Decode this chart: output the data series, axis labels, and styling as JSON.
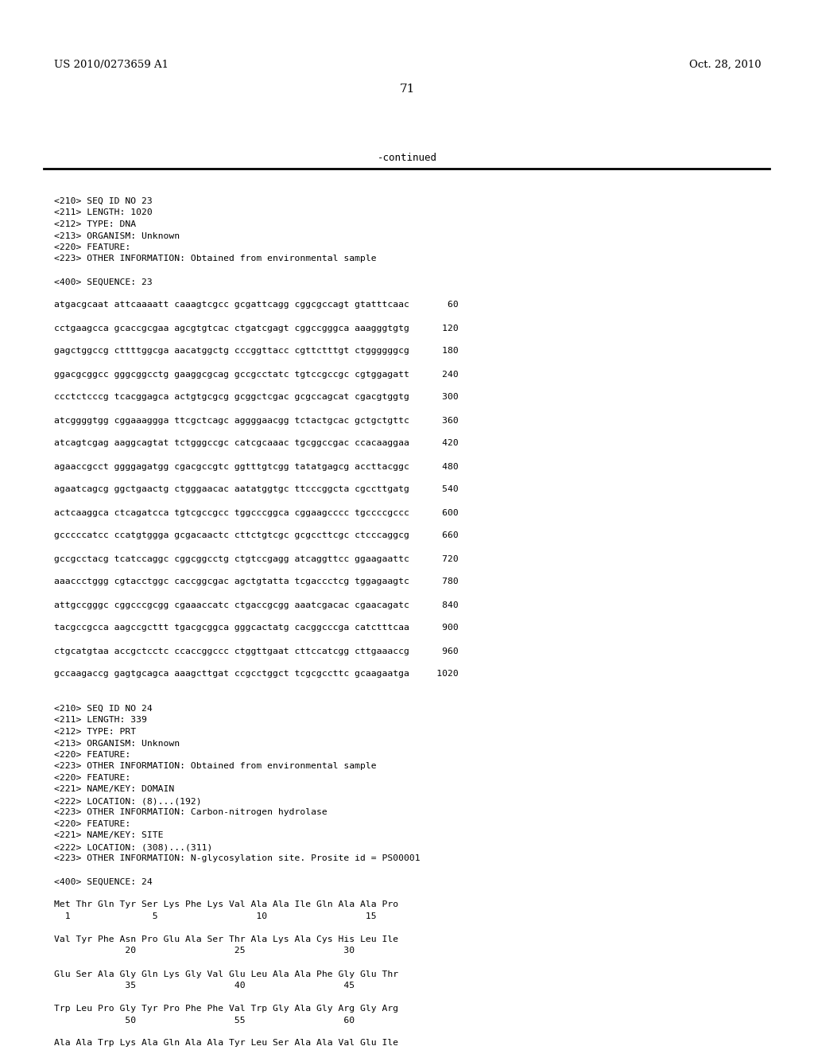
{
  "header_left": "US 2010/0273659 A1",
  "header_right": "Oct. 28, 2010",
  "page_number": "71",
  "continued_text": "-continued",
  "background_color": "#ffffff",
  "text_color": "#000000",
  "content": [
    "<210> SEQ ID NO 23",
    "<211> LENGTH: 1020",
    "<212> TYPE: DNA",
    "<213> ORGANISM: Unknown",
    "<220> FEATURE:",
    "<223> OTHER INFORMATION: Obtained from environmental sample",
    "",
    "<400> SEQUENCE: 23",
    "",
    "atgacgcaat attcaaaatt caaagtcgcc gcgattcagg cggcgccagt gtatttcaac       60",
    "",
    "cctgaagcca gcaccgcgaa agcgtgtcac ctgatcgagt cggccgggca aaagggtgtg      120",
    "",
    "gagctggccg cttttggcga aacatggctg cccggttacc cgttctttgt ctggggggcg      180",
    "",
    "ggacgcggcc gggcggcctg gaaggcgcag gccgcctatc tgtccgccgc cgtggagatt      240",
    "",
    "ccctctcccg tcacggagca actgtgcgcg gcggctcgac gcgccagcat cgacgtggtg      300",
    "",
    "atcggggtgg cggaaaggga ttcgctcagc aggggaacgg tctactgcac gctgctgttc      360",
    "",
    "atcagtcgag aaggcagtat tctgggccgc catcgcaaac tgcggccgac ccacaaggaa      420",
    "",
    "agaaccgcct ggggagatgg cgacgccgtc ggtttgtcgg tatatgagcg accttacggc      480",
    "",
    "agaatcagcg ggctgaactg ctgggaacac aatatggtgc ttcccggcta cgccttgatg      540",
    "",
    "actcaaggca ctcagatcca tgtcgccgcc tggcccggca cggaagcccc tgccccgccc      600",
    "",
    "gcccccatcc ccatgtggga gcgacaactc cttctgtcgc gcgccttcgc ctcccaggcg      660",
    "",
    "gccgcctacg tcatccaggc cggcggcctg ctgtccgagg atcaggttcc ggaagaattc      720",
    "",
    "aaaccctggg cgtacctggc caccggcgac agctgtatta tcgaccctcg tggagaagtc      780",
    "",
    "attgccgggc cggcccgcgg cgaaaccatc ctgaccgcgg aaatcgacac cgaacagatc      840",
    "",
    "tacgccgcca aagccgcttt tgacgcggca gggcactatg cacggcccga catctttcaa      900",
    "",
    "ctgcatgtaa accgctcctc ccaccggccc ctggttgaat cttccatcgg cttgaaaccg      960",
    "",
    "gccaagaccg gagtgcagca aaagcttgat ccgcctggct tcgcgccttc gcaagaatga     1020",
    "",
    "",
    "<210> SEQ ID NO 24",
    "<211> LENGTH: 339",
    "<212> TYPE: PRT",
    "<213> ORGANISM: Unknown",
    "<220> FEATURE:",
    "<223> OTHER INFORMATION: Obtained from environmental sample",
    "<220> FEATURE:",
    "<221> NAME/KEY: DOMAIN",
    "<222> LOCATION: (8)...(192)",
    "<223> OTHER INFORMATION: Carbon-nitrogen hydrolase",
    "<220> FEATURE:",
    "<221> NAME/KEY: SITE",
    "<222> LOCATION: (308)...(311)",
    "<223> OTHER INFORMATION: N-glycosylation site. Prosite id = PS00001",
    "",
    "<400> SEQUENCE: 24",
    "",
    "Met Thr Gln Tyr Ser Lys Phe Lys Val Ala Ala Ile Gln Ala Ala Pro",
    "  1               5                  10                  15",
    "",
    "Val Tyr Phe Asn Pro Glu Ala Ser Thr Ala Lys Ala Cys His Leu Ile",
    "             20                  25                  30",
    "",
    "Glu Ser Ala Gly Gln Lys Gly Val Glu Leu Ala Ala Phe Gly Glu Thr",
    "             35                  40                  45",
    "",
    "Trp Leu Pro Gly Tyr Pro Phe Phe Val Trp Gly Ala Gly Arg Gly Arg",
    "             50                  55                  60",
    "",
    "Ala Ala Trp Lys Ala Gln Ala Ala Tyr Leu Ser Ala Ala Val Glu Ile"
  ]
}
